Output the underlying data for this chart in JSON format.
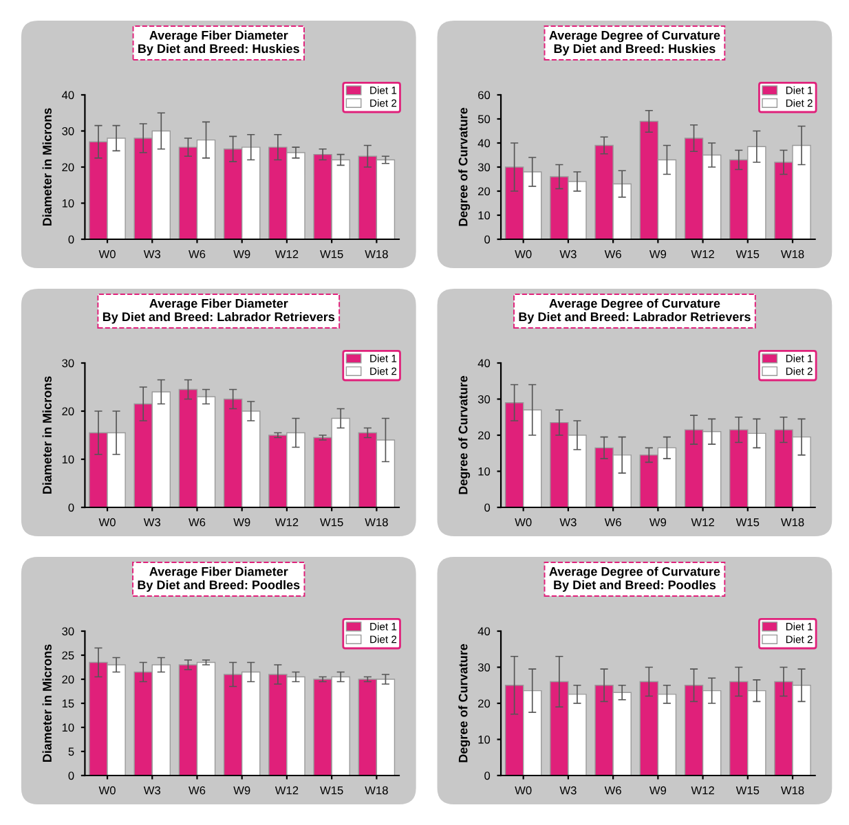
{
  "chart_data": [
    {
      "type": "bar",
      "title": "Average Fiber Diameter\nBy Diet and Breed: Huskies",
      "ylabel": "Diameter in Microns",
      "categories": [
        "W0",
        "W3",
        "W6",
        "W9",
        "W12",
        "W15",
        "W18"
      ],
      "ylim": [
        0,
        40
      ],
      "yticks": [
        0,
        10,
        20,
        30,
        40
      ],
      "legend": "top right",
      "series": [
        {
          "name": "Diet 1",
          "color": "#e0207a",
          "values": [
            27,
            28,
            25.5,
            25,
            25.5,
            23.5,
            23
          ],
          "errors": [
            4.5,
            4,
            2.5,
            3.5,
            3.5,
            1.5,
            3
          ]
        },
        {
          "name": "Diet 2",
          "color": "#ffffff",
          "values": [
            28,
            30,
            27.5,
            25.5,
            24,
            22,
            22
          ],
          "errors": [
            3.5,
            5,
            5,
            3.5,
            1.5,
            1.5,
            1
          ]
        }
      ]
    },
    {
      "type": "bar",
      "title": "Average Degree of Curvature\nBy Diet and Breed: Huskies",
      "ylabel": "Degree of Curvature",
      "categories": [
        "W0",
        "W3",
        "W6",
        "W9",
        "W12",
        "W15",
        "W18"
      ],
      "ylim": [
        0,
        60
      ],
      "yticks": [
        0,
        10,
        20,
        30,
        40,
        50,
        60
      ],
      "legend": "top right",
      "series": [
        {
          "name": "Diet 1",
          "color": "#e0207a",
          "values": [
            30,
            26,
            39,
            49,
            42,
            33,
            32
          ],
          "errors": [
            10,
            5,
            3.5,
            4.5,
            5.5,
            4,
            5
          ]
        },
        {
          "name": "Diet 2",
          "color": "#ffffff",
          "values": [
            28,
            24,
            23,
            33,
            35,
            38.5,
            39
          ],
          "errors": [
            6,
            4,
            5.5,
            6,
            5,
            6.5,
            8
          ]
        }
      ]
    },
    {
      "type": "bar",
      "title": "Average Fiber Diameter\nBy Diet and Breed: Labrador Retrievers",
      "ylabel": "Diameter in Microns",
      "categories": [
        "W0",
        "W3",
        "W6",
        "W9",
        "W12",
        "W15",
        "W18"
      ],
      "ylim": [
        0,
        30
      ],
      "yticks": [
        0,
        10,
        20,
        30
      ],
      "legend": "top right",
      "series": [
        {
          "name": "Diet 1",
          "color": "#e0207a",
          "values": [
            15.5,
            21.5,
            24.5,
            22.5,
            15,
            14.5,
            15.5
          ],
          "errors": [
            4.5,
            3.5,
            2,
            2,
            0.5,
            0.5,
            1
          ]
        },
        {
          "name": "Diet 2",
          "color": "#ffffff",
          "values": [
            15.5,
            24,
            23,
            20,
            15.5,
            18.5,
            14
          ],
          "errors": [
            4.5,
            2.5,
            1.5,
            2,
            3,
            2,
            4.5
          ]
        }
      ]
    },
    {
      "type": "bar",
      "title": "Average Degree of Curvature\nBy Diet and Breed: Labrador Retrievers",
      "ylabel": "Degree of Curvature",
      "categories": [
        "W0",
        "W3",
        "W6",
        "W9",
        "W12",
        "W15",
        "W18"
      ],
      "ylim": [
        0,
        40
      ],
      "yticks": [
        0,
        10,
        20,
        30,
        40
      ],
      "legend": "top right",
      "series": [
        {
          "name": "Diet 1",
          "color": "#e0207a",
          "values": [
            29,
            23.5,
            16.5,
            14.5,
            21.5,
            21.5,
            21.5
          ],
          "errors": [
            5,
            3.5,
            3,
            2,
            4,
            3.5,
            3.5
          ]
        },
        {
          "name": "Diet 2",
          "color": "#ffffff",
          "values": [
            27,
            20,
            14.5,
            16.5,
            21,
            20.5,
            19.5
          ],
          "errors": [
            7,
            4,
            5,
            3,
            3.5,
            4,
            5
          ]
        }
      ]
    },
    {
      "type": "bar",
      "title": "Average Fiber Diameter\nBy Diet and Breed: Poodles",
      "ylabel": "Diameter in Microns",
      "categories": [
        "W0",
        "W3",
        "W6",
        "W9",
        "W12",
        "W15",
        "W18"
      ],
      "ylim": [
        0,
        30
      ],
      "yticks": [
        0,
        5,
        10,
        15,
        20,
        25,
        30
      ],
      "legend": "top right",
      "series": [
        {
          "name": "Diet 1",
          "color": "#e0207a",
          "values": [
            23.5,
            21.5,
            23,
            21,
            21,
            20,
            20
          ],
          "errors": [
            3,
            2,
            1,
            2.5,
            2,
            0.5,
            0.5
          ]
        },
        {
          "name": "Diet 2",
          "color": "#ffffff",
          "values": [
            23,
            23,
            23.5,
            21.5,
            20.5,
            20.5,
            20
          ],
          "errors": [
            1.5,
            1.5,
            0.5,
            2,
            1,
            1,
            1
          ]
        }
      ]
    },
    {
      "type": "bar",
      "title": "Average Degree of Curvature\nBy Diet and Breed: Poodles",
      "ylabel": "Degree of Curvature",
      "categories": [
        "W0",
        "W3",
        "W6",
        "W9",
        "W12",
        "W15",
        "W18"
      ],
      "ylim": [
        0,
        40
      ],
      "yticks": [
        0,
        10,
        20,
        30,
        40
      ],
      "legend": "top right",
      "series": [
        {
          "name": "Diet 1",
          "color": "#e0207a",
          "values": [
            25,
            26,
            25,
            26,
            25,
            26,
            26
          ],
          "errors": [
            8,
            7,
            4.5,
            4,
            4.5,
            4,
            4
          ]
        },
        {
          "name": "Diet 2",
          "color": "#ffffff",
          "values": [
            23.5,
            22.5,
            23,
            22.5,
            23.5,
            23.5,
            25
          ],
          "errors": [
            6,
            2.5,
            2,
            2.5,
            3.5,
            3,
            4.5
          ]
        }
      ]
    }
  ]
}
